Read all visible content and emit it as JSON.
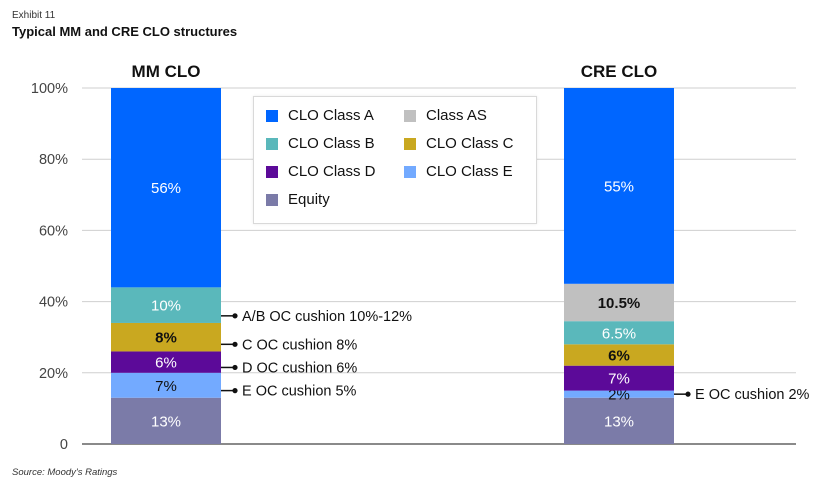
{
  "header": {
    "exhibit": "Exhibit 11",
    "title": "Typical MM and CRE CLO structures"
  },
  "footer": {
    "source": "Source: Moody's Ratings"
  },
  "legend": {
    "items": [
      {
        "label": "CLO Class A",
        "color": "#0066ff"
      },
      {
        "label": "Class AS",
        "color": "#c0c0c0"
      },
      {
        "label": "CLO Class B",
        "color": "#5ab8bb"
      },
      {
        "label": "CLO Class C",
        "color": "#c9a820"
      },
      {
        "label": "CLO Class D",
        "color": "#5c0a99"
      },
      {
        "label": "CLO Class E",
        "color": "#73aaff"
      },
      {
        "label": "Equity",
        "color": "#7b7ba8"
      }
    ]
  },
  "chart_data": {
    "type": "bar",
    "stacked": true,
    "ylim": [
      0,
      100
    ],
    "yticks": [
      0,
      20,
      40,
      60,
      80,
      100
    ],
    "ytick_labels": [
      "0",
      "20%",
      "40%",
      "60%",
      "80%",
      "100%"
    ],
    "grid": true,
    "legend_position": "top-center",
    "categories": [
      "MM CLO",
      "CRE CLO"
    ],
    "series": [
      {
        "name": "Equity",
        "color": "#7b7ba8",
        "values": [
          13,
          13
        ],
        "labels": [
          "13%",
          "13%"
        ]
      },
      {
        "name": "CLO Class E",
        "color": "#73aaff",
        "values": [
          7,
          2
        ],
        "labels": [
          "7%",
          "2%"
        ]
      },
      {
        "name": "CLO Class D",
        "color": "#5c0a99",
        "values": [
          6,
          7
        ],
        "labels": [
          "6%",
          "7%"
        ]
      },
      {
        "name": "CLO Class C",
        "color": "#c9a820",
        "values": [
          8,
          6
        ],
        "labels": [
          "8%",
          "6%"
        ]
      },
      {
        "name": "CLO Class B",
        "color": "#5ab8bb",
        "values": [
          10,
          6.5
        ],
        "labels": [
          "10%",
          "6.5%"
        ]
      },
      {
        "name": "Class AS",
        "color": "#c0c0c0",
        "values": [
          0,
          10.5
        ],
        "labels": [
          "",
          "10.5%"
        ]
      },
      {
        "name": "CLO Class A",
        "color": "#0066ff",
        "values": [
          56,
          55
        ],
        "labels": [
          "56%",
          "55%"
        ]
      }
    ],
    "annotations": [
      {
        "category": "MM CLO",
        "y": 36,
        "text": "A/B OC cushion 10%-12%"
      },
      {
        "category": "MM CLO",
        "y": 28,
        "text": "C OC cushion 8%"
      },
      {
        "category": "MM CLO",
        "y": 21.5,
        "text": "D OC cushion 6%"
      },
      {
        "category": "MM CLO",
        "y": 15,
        "text": "E OC cushion 5%"
      },
      {
        "category": "CRE CLO",
        "y": 14,
        "text": "E OC cushion 2%"
      }
    ]
  }
}
